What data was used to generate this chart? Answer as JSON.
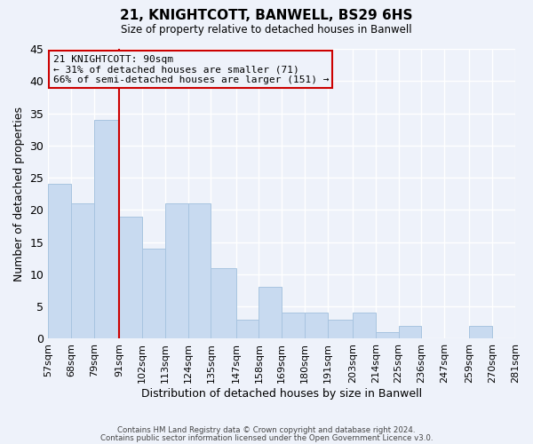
{
  "title": "21, KNIGHTCOTT, BANWELL, BS29 6HS",
  "subtitle": "Size of property relative to detached houses in Banwell",
  "xlabel": "Distribution of detached houses by size in Banwell",
  "ylabel": "Number of detached properties",
  "bar_color": "#c8daf0",
  "bar_edge_color": "#a8c4e0",
  "vline_color": "#cc0000",
  "vline_x": 91,
  "annotation_line1": "21 KNIGHTCOTT: 90sqm",
  "annotation_line2": "← 31% of detached houses are smaller (71)",
  "annotation_line3": "66% of semi-detached houses are larger (151) →",
  "annotation_box_color": "#cc0000",
  "background_color": "#eef2fa",
  "grid_color": "#ffffff",
  "bin_edges": [
    57,
    68,
    79,
    91,
    102,
    113,
    124,
    135,
    147,
    158,
    169,
    180,
    191,
    203,
    214,
    225,
    236,
    247,
    259,
    270,
    281
  ],
  "bin_labels": [
    "57sqm",
    "68sqm",
    "79sqm",
    "91sqm",
    "102sqm",
    "113sqm",
    "124sqm",
    "135sqm",
    "147sqm",
    "158sqm",
    "169sqm",
    "180sqm",
    "191sqm",
    "203sqm",
    "214sqm",
    "225sqm",
    "236sqm",
    "247sqm",
    "259sqm",
    "270sqm",
    "281sqm"
  ],
  "counts": [
    24,
    21,
    34,
    19,
    14,
    21,
    21,
    11,
    3,
    8,
    4,
    4,
    3,
    4,
    1,
    2,
    0,
    0,
    2,
    0
  ],
  "ylim": [
    0,
    45
  ],
  "yticks": [
    0,
    5,
    10,
    15,
    20,
    25,
    30,
    35,
    40,
    45
  ],
  "footer_line1": "Contains HM Land Registry data © Crown copyright and database right 2024.",
  "footer_line2": "Contains public sector information licensed under the Open Government Licence v3.0."
}
